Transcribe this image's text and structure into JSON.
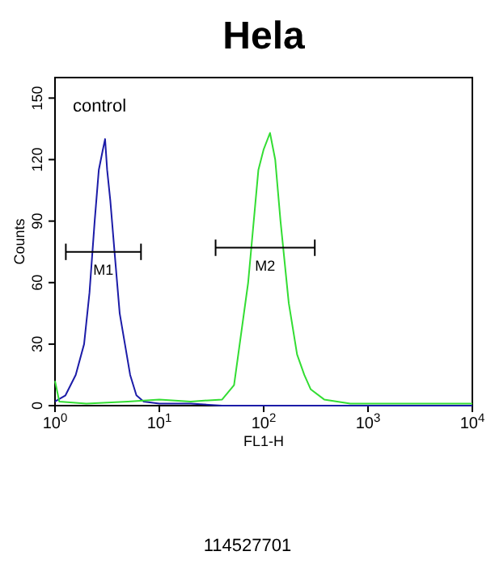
{
  "chart_data": {
    "type": "line",
    "title": "Hela",
    "xlabel": "FL1-H",
    "ylabel": "Counts",
    "log": "x",
    "xlim": [
      1,
      10000
    ],
    "xticks": [
      {
        "value": 1,
        "label": "10$^{0}$"
      },
      {
        "value": 10,
        "label": "10$^{1}$"
      },
      {
        "value": 100,
        "label": "10$^{2}$"
      },
      {
        "value": 1000,
        "label": "10$^{3}$"
      },
      {
        "value": 10000,
        "label": "10$^{4}$"
      }
    ],
    "ylim": [
      0,
      160
    ],
    "yticks": [
      0,
      30,
      60,
      90,
      120,
      150
    ],
    "series": [
      {
        "color": "#1c1ca8",
        "x": [
          1,
          1.26,
          1.58,
          1.9,
          2.14,
          2.4,
          2.63,
          2.88,
          3.02,
          3.16,
          3.39,
          3.72,
          4.17,
          4.68,
          5.25,
          6.03,
          7.08,
          10,
          20,
          40,
          100,
          1000,
          10000
        ],
        "values": [
          2,
          5,
          15,
          30,
          55,
          90,
          115,
          125,
          130,
          115,
          100,
          75,
          45,
          30,
          15,
          5,
          2,
          1,
          1,
          0,
          0,
          0,
          0
        ]
      },
      {
        "color": "#33dd33",
        "x": [
          1,
          1.1,
          2,
          5,
          10,
          20,
          40,
          52,
          71,
          89,
          100,
          115,
          129,
          145,
          174,
          209,
          245,
          282,
          380,
          676,
          1000,
          3000,
          10000
        ],
        "values": [
          12,
          2,
          1,
          2,
          3,
          2,
          3,
          10,
          60,
          115,
          125,
          133,
          120,
          90,
          50,
          25,
          15,
          8,
          3,
          1,
          1,
          1,
          1
        ]
      },
      {
        "name": "M1",
        "color": "#000000",
        "x": [
          1.27,
          6.67
        ],
        "values": [
          75,
          75
        ],
        "errors": [
          4,
          4
        ]
      },
      {
        "name": "M2",
        "color": "#000000",
        "x": [
          34.6,
          309
        ],
        "values": [
          77,
          77
        ],
        "errors": [
          4,
          4
        ]
      }
    ],
    "annotations": [
      "control",
      "114527701"
    ]
  }
}
